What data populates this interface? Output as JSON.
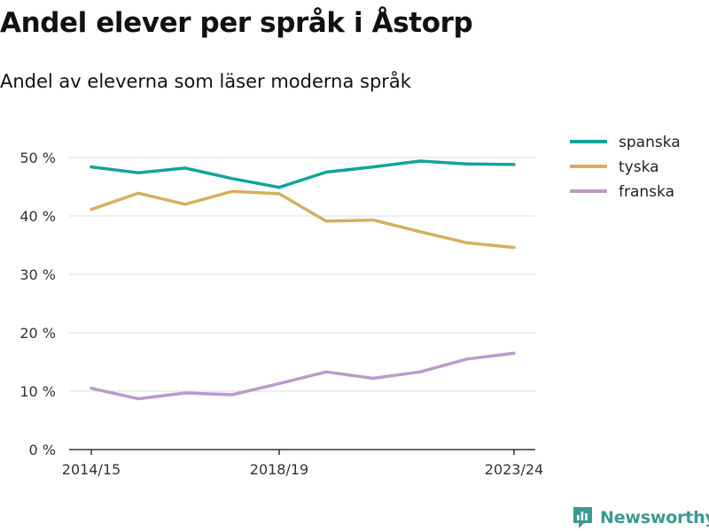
{
  "header": {
    "title": "Andel elever per språk i Åstorp",
    "subtitle": "Andel av eleverna som läser moderna språk"
  },
  "brand": {
    "name": "Newsworthy",
    "color": "#3a9a8f"
  },
  "chart_data": {
    "type": "line",
    "title": "Andel elever per språk i Åstorp",
    "subtitle": "Andel av eleverna som läser moderna språk",
    "xlabel": "",
    "ylabel": "",
    "ylim": [
      0,
      50
    ],
    "y_ticks": [
      0,
      10,
      20,
      30,
      40,
      50
    ],
    "y_tick_labels": [
      "0 %",
      "10 %",
      "20 %",
      "30 %",
      "40 %",
      "50 %"
    ],
    "x_tick_labels": [
      "2014/15",
      "2018/19",
      "2023/24"
    ],
    "x_tick_positions": [
      0,
      4,
      9
    ],
    "categories": [
      "2014/15",
      "2015/16",
      "2016/17",
      "2017/18",
      "2018/19",
      "2019/20",
      "2020/21",
      "2021/22",
      "2022/23",
      "2023/24"
    ],
    "grid": true,
    "legend_position": "top-right",
    "series": [
      {
        "name": "spanska",
        "color": "#12a39a",
        "values": [
          48.4,
          47.4,
          48.2,
          46.4,
          44.9,
          47.5,
          48.4,
          49.4,
          48.9,
          48.8
        ]
      },
      {
        "name": "tyska",
        "color": "#d4b05e",
        "values": [
          41.1,
          43.9,
          42.0,
          44.2,
          43.8,
          39.1,
          39.3,
          37.3,
          35.4,
          34.6
        ]
      },
      {
        "name": "franska",
        "color": "#bc9acb",
        "values": [
          10.5,
          8.7,
          9.7,
          9.4,
          11.3,
          13.3,
          12.2,
          13.3,
          15.5,
          16.5
        ]
      }
    ]
  }
}
